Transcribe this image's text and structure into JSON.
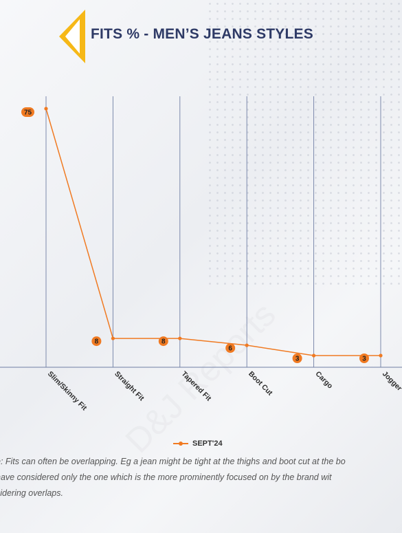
{
  "header": {
    "title": "FITS % - MEN’S JEANS STYLES"
  },
  "colors": {
    "series": "#f07a22",
    "title": "#2e3a66",
    "accent": "#f6b817",
    "grid": "#6f7ea4"
  },
  "chart_data": {
    "type": "line",
    "categories": [
      "Slim/Skinny Fit",
      "Straight Fit",
      "Tapered Fit",
      "Boot Cut",
      "Cargo",
      "Jogger"
    ],
    "series": [
      {
        "name": "SEPT'24",
        "values": [
          75,
          8,
          8,
          6,
          3,
          3
        ]
      }
    ],
    "ylim": [
      0,
      80
    ],
    "grid": "vertical lines at each category",
    "legend": "bottom-center"
  },
  "legend": {
    "label": "SEPT'24"
  },
  "note": {
    "line1": "e: Fits can often be overlapping. Eg a jean might be tight at the thighs and boot cut at the bo",
    "line2": "have considered only the one which is the more prominently focused on by the brand wit",
    "line3": "sidering overlaps."
  },
  "watermark": "D&J Reports"
}
